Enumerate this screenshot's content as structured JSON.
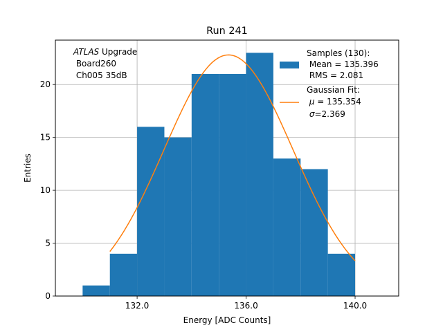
{
  "chart_data": {
    "type": "bar",
    "title": "Run 241",
    "xlabel": "Energy [ADC Counts]",
    "ylabel": "Entries",
    "xlim": [
      129.0,
      141.6
    ],
    "ylim": [
      0,
      24.2
    ],
    "xticks": [
      132.0,
      136.0,
      140.0
    ],
    "xtick_labels": [
      "132.0",
      "136.0",
      "140.0"
    ],
    "yticks": [
      0,
      5,
      10,
      15,
      20
    ],
    "ytick_labels": [
      "0",
      "5",
      "10",
      "15",
      "20"
    ],
    "grid": true,
    "bin_edges": [
      130,
      131,
      132,
      133,
      134,
      135,
      136,
      137,
      138,
      139,
      140
    ],
    "counts": [
      1,
      4,
      16,
      15,
      21,
      21,
      23,
      13,
      12,
      4
    ],
    "histogram_color": "#1f77b4",
    "fit": {
      "type": "gaussian",
      "mu": 135.354,
      "sigma": 2.369,
      "amplitude": 22.8,
      "x_range": [
        131.0,
        140.0
      ],
      "color": "#ff7f0e"
    },
    "annotation": {
      "line1_italic": "ATLAS",
      "line1_rest": " Upgrade",
      "line2": " Board260",
      "line3": " Ch005 35dB"
    },
    "legend": {
      "placement": "top-right",
      "samples_label": "Samples (130):",
      "samples_mean": " Mean = 135.396",
      "samples_rms": " RMS = 2.081",
      "fit_label": "Gaussian Fit:",
      "fit_mu_symbol": "μ",
      "fit_mu_value": " = 135.354",
      "fit_sigma_symbol": "σ",
      "fit_sigma_value": "=2.369"
    }
  }
}
